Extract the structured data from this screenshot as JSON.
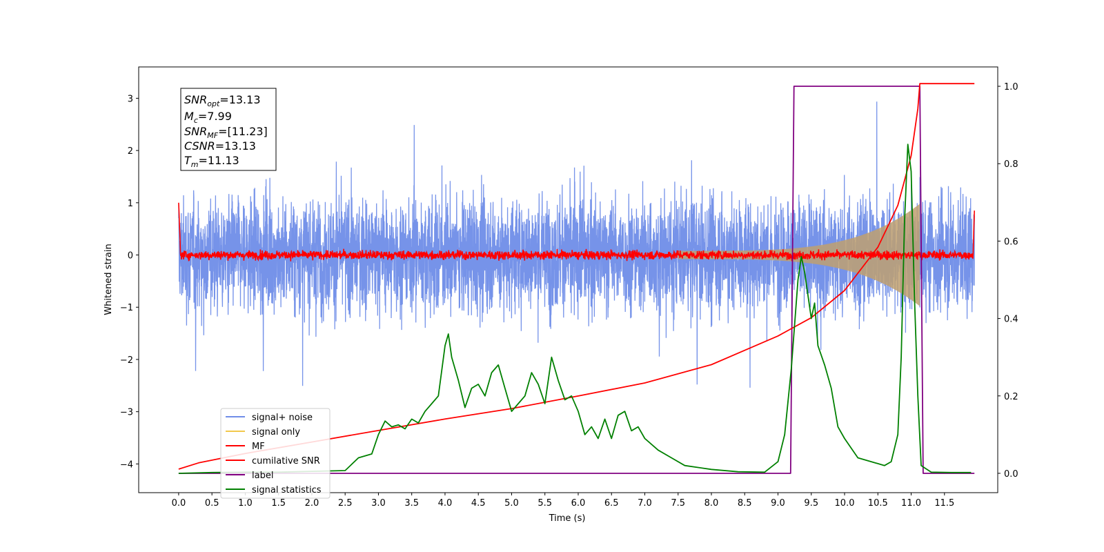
{
  "chart_data": {
    "type": "line",
    "xlabel": "Time (s)",
    "ylabel": "Whitened strain",
    "xlim": [
      -0.6,
      12.3
    ],
    "ylim": [
      -4.55,
      3.6
    ],
    "y2lim": [
      -0.05,
      1.05
    ],
    "xticks": [
      "0.0",
      "0.5",
      "1.0",
      "1.5",
      "2.0",
      "2.5",
      "3.0",
      "3.5",
      "4.0",
      "4.5",
      "5.0",
      "5.5",
      "6.0",
      "6.5",
      "7.0",
      "7.5",
      "8.0",
      "8.5",
      "9.0",
      "9.5",
      "10.0",
      "10.5",
      "11.0",
      "11.5"
    ],
    "yticks": [
      "3",
      "2",
      "1",
      "0",
      "−1",
      "−2",
      "−3",
      "−4"
    ],
    "y2ticks": [
      "1.0",
      "0.8",
      "0.6",
      "0.4",
      "0.2",
      "0.0"
    ],
    "colors": {
      "signal_noise": "#6f8de8",
      "signal_only": "#f2c84b",
      "mf": "#ff0000",
      "csnr": "#ff0000",
      "label": "#800080",
      "stats": "#008000",
      "envelope": "#c0a070"
    },
    "legend": {
      "placement": "lower-left",
      "entries": [
        "signal+ noise",
        "signal only",
        "MF",
        "cumilative SNR",
        "label",
        "signal statistics"
      ]
    },
    "annotation": {
      "line1": {
        "sym": "SNR",
        "sub": "opt",
        "val": "=13.13"
      },
      "line2": {
        "sym": "M",
        "sub": "c",
        "val": "=7.99"
      },
      "line3": {
        "sym": "SNR",
        "sub": "MF",
        "val": "=[11.23]"
      },
      "line4": {
        "sym": "CSNR",
        "sub": "",
        "val": "=13.13"
      },
      "line5": {
        "sym": "T",
        "sub": "m",
        "val": "=11.13"
      }
    },
    "series": [
      {
        "name": "label",
        "axis": "right",
        "x": [
          0.0,
          9.19,
          9.24,
          11.13,
          11.18,
          11.95
        ],
        "y": [
          0.0,
          0.0,
          1.0,
          1.0,
          0.0,
          0.0
        ]
      },
      {
        "name": "cumilative SNR",
        "axis": "left",
        "x": [
          0.0,
          0.3,
          1.0,
          2.0,
          3.0,
          4.0,
          5.0,
          6.0,
          7.0,
          8.0,
          9.0,
          9.5,
          10.0,
          10.5,
          10.8,
          11.0,
          11.1,
          11.13,
          11.95
        ],
        "y": [
          -4.1,
          -3.98,
          -3.8,
          -3.58,
          -3.36,
          -3.14,
          -2.94,
          -2.7,
          -2.45,
          -2.1,
          -1.55,
          -1.2,
          -0.68,
          0.15,
          0.95,
          1.9,
          2.8,
          3.28,
          3.28
        ]
      },
      {
        "name": "signal statistics",
        "axis": "right",
        "x": [
          0.0,
          0.5,
          1.0,
          1.5,
          2.0,
          2.5,
          2.7,
          2.9,
          3.0,
          3.1,
          3.2,
          3.3,
          3.4,
          3.5,
          3.6,
          3.7,
          3.8,
          3.9,
          4.0,
          4.05,
          4.1,
          4.2,
          4.3,
          4.4,
          4.5,
          4.6,
          4.7,
          4.8,
          4.9,
          5.0,
          5.1,
          5.2,
          5.3,
          5.4,
          5.5,
          5.6,
          5.7,
          5.8,
          5.9,
          6.0,
          6.1,
          6.2,
          6.3,
          6.4,
          6.5,
          6.6,
          6.7,
          6.8,
          6.9,
          7.0,
          7.2,
          7.4,
          7.6,
          7.8,
          8.0,
          8.4,
          8.8,
          9.0,
          9.1,
          9.2,
          9.3,
          9.35,
          9.4,
          9.5,
          9.55,
          9.6,
          9.7,
          9.8,
          9.9,
          10.0,
          10.2,
          10.4,
          10.6,
          10.7,
          10.8,
          10.85,
          10.9,
          10.95,
          11.0,
          11.05,
          11.1,
          11.15,
          11.3,
          11.6,
          11.9
        ],
        "y": [
          0.0,
          0.002,
          0.003,
          0.003,
          0.005,
          0.007,
          0.04,
          0.05,
          0.1,
          0.135,
          0.12,
          0.125,
          0.115,
          0.14,
          0.13,
          0.16,
          0.18,
          0.2,
          0.33,
          0.36,
          0.3,
          0.24,
          0.17,
          0.22,
          0.23,
          0.2,
          0.26,
          0.28,
          0.22,
          0.16,
          0.18,
          0.2,
          0.26,
          0.23,
          0.18,
          0.3,
          0.24,
          0.19,
          0.2,
          0.16,
          0.1,
          0.12,
          0.09,
          0.14,
          0.09,
          0.15,
          0.16,
          0.11,
          0.12,
          0.09,
          0.06,
          0.04,
          0.02,
          0.015,
          0.01,
          0.004,
          0.003,
          0.03,
          0.1,
          0.27,
          0.5,
          0.56,
          0.52,
          0.4,
          0.44,
          0.33,
          0.28,
          0.22,
          0.12,
          0.09,
          0.04,
          0.03,
          0.02,
          0.03,
          0.1,
          0.3,
          0.65,
          0.85,
          0.78,
          0.45,
          0.2,
          0.02,
          0.003,
          0.002,
          0.002
        ]
      }
    ]
  }
}
